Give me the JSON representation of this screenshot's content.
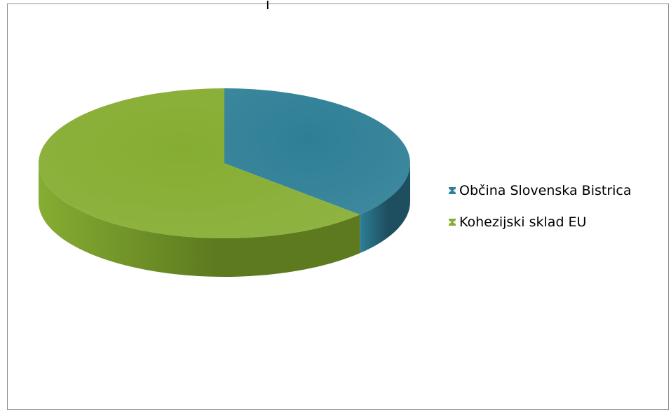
{
  "chart_data": {
    "type": "pie",
    "title": "",
    "title_fragment": "j",
    "slices": [
      {
        "label": "Občina Slovenska Bistrica",
        "value": 37,
        "color": "#2e7f96",
        "side_color": "#1d4f60"
      },
      {
        "label": "Kohezijski sklad EU",
        "value": 63,
        "color": "#86ad32",
        "side_color": "#5d7a1f"
      }
    ],
    "start_angle": "12 o'clock",
    "direction": "clockwise",
    "style": "3d",
    "legend_position": "right"
  }
}
